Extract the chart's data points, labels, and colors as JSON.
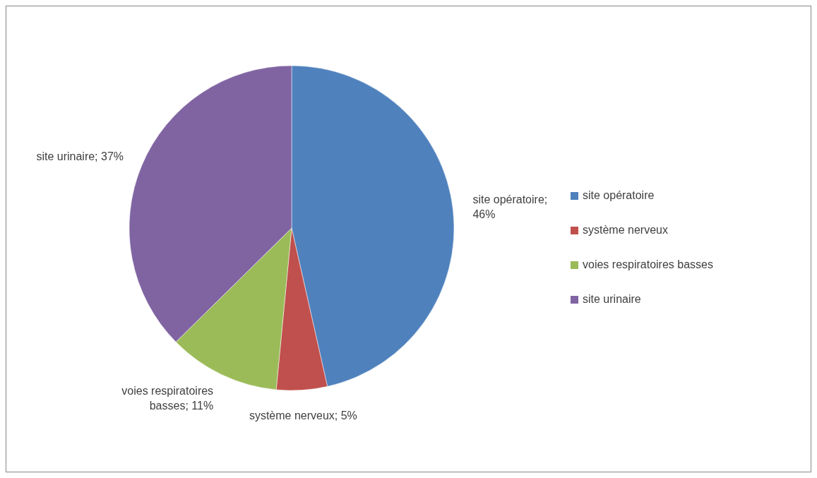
{
  "chart_data": {
    "type": "pie",
    "categories": [
      "site opératoire",
      "système nerveux",
      "voies respiratoires basses",
      "site urinaire"
    ],
    "values": [
      46,
      5,
      11,
      37
    ],
    "colors": [
      "#4f81bd",
      "#c0504d",
      "#9bbb59",
      "#8064a2"
    ],
    "value_labels": [
      "site opératoire; 46%",
      "système nerveux; 5%",
      "voies respiratoires basses; 11%",
      "site urinaire; 37%"
    ],
    "legend": "right"
  }
}
